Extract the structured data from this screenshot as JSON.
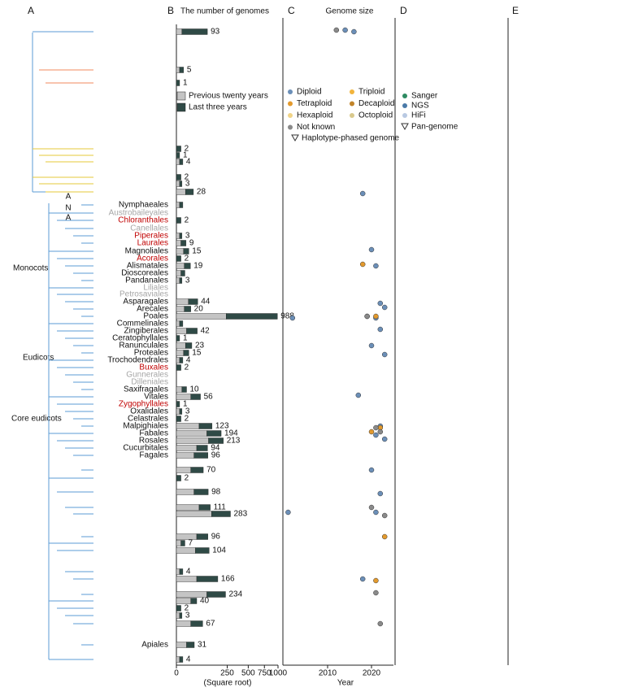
{
  "panels": [
    "A",
    "B",
    "C",
    "D",
    "E"
  ],
  "tree": {
    "clades": [
      "Monocots",
      "Eudicots",
      "Core eudicots"
    ],
    "ana": [
      "A",
      "N",
      "A"
    ]
  },
  "chart_data": [
    {
      "type": "bar",
      "orientation": "horizontal",
      "title": "The number of genomes",
      "xlabel": "(Square root)",
      "xscale": "sqrt",
      "xlim": [
        0,
        1000
      ],
      "xticks": [
        0,
        250,
        500,
        750,
        1000
      ],
      "categories": [
        null,
        null,
        null,
        null,
        null,
        null,
        null,
        null,
        null,
        "Nymphaeales",
        "Austrobaileyales",
        "Chloranthales",
        "Canellales",
        "Piperales",
        "Laurales",
        "Magnoliales",
        "Acorales",
        "Alismatales",
        "Dioscoreales",
        "Pandanales",
        "Liliales",
        "Petrosaviales",
        "Asparagales",
        "Arecales",
        "Poales",
        "Commelinales",
        "Zingiberales",
        "Ceratophyllales",
        "Ranunculales",
        "Proteales",
        "Trochodendrales",
        "Buxales",
        "Gunnerales",
        "Dilleniales",
        "Saxifragales",
        "Vitales",
        "Zygophyllales",
        "Oxalidales",
        "Celastrales",
        "Malpighiales",
        "Fabales",
        "Rosales",
        "Cucurbitales",
        "Fagales",
        null,
        null,
        null,
        null,
        null,
        null,
        null,
        null,
        null,
        null,
        null,
        null,
        null,
        null,
        null,
        "Apiales",
        null
      ],
      "category_colors": [
        null,
        null,
        null,
        null,
        null,
        null,
        null,
        null,
        null,
        "#111111",
        "#a6a6a6",
        "#c00000",
        "#a6a6a6",
        "#c00000",
        "#c00000",
        "#111111",
        "#c00000",
        "#111111",
        "#111111",
        "#111111",
        "#a6a6a6",
        "#a6a6a6",
        "#111111",
        "#111111",
        "#111111",
        "#111111",
        "#111111",
        "#111111",
        "#111111",
        "#111111",
        "#111111",
        "#c00000",
        "#a6a6a6",
        "#a6a6a6",
        "#111111",
        "#111111",
        "#c00000",
        "#111111",
        "#111111",
        "#111111",
        "#111111",
        "#111111",
        "#111111",
        "#111111",
        null,
        null,
        null,
        null,
        null,
        null,
        null,
        null,
        null,
        null,
        null,
        null,
        null,
        null,
        null,
        "#111111",
        null
      ],
      "series": [
        {
          "name": "Previous twenty years",
          "color": "#c4c4c4",
          "values": [
            3,
            1,
            0,
            0,
            0,
            1,
            0,
            1,
            8,
            1,
            null,
            0,
            null,
            1,
            2,
            5,
            0,
            6,
            2,
            1,
            null,
            null,
            14,
            6,
            240,
            1,
            10,
            0,
            8,
            5,
            1,
            0,
            null,
            null,
            3,
            20,
            0,
            1,
            0,
            50,
            90,
            100,
            40,
            30,
            20,
            0,
            30,
            50,
            120,
            40,
            2,
            35,
            1,
            40,
            90,
            20,
            0,
            1,
            20,
            10,
            1
          ]
        },
        {
          "name": "Last three years",
          "color": "#2f4a46",
          "values": [
            90,
            4,
            1,
            2,
            1,
            3,
            2,
            2,
            20,
            3,
            null,
            2,
            null,
            2,
            7,
            10,
            2,
            13,
            5,
            2,
            null,
            null,
            30,
            14,
            748,
            3,
            32,
            1,
            15,
            10,
            3,
            2,
            null,
            null,
            7,
            36,
            1,
            2,
            2,
            73,
            104,
            113,
            54,
            66,
            50,
            2,
            68,
            61,
            163,
            56,
            5,
            69,
            3,
            126,
            144,
            20,
            2,
            2,
            47,
            21,
            3
          ]
        }
      ],
      "totals": [
        93,
        5,
        1,
        2,
        1,
        4,
        2,
        3,
        28,
        null,
        null,
        2,
        null,
        3,
        9,
        15,
        2,
        19,
        null,
        3,
        null,
        null,
        44,
        20,
        988,
        null,
        42,
        1,
        23,
        15,
        4,
        2,
        null,
        null,
        10,
        56,
        1,
        3,
        2,
        123,
        194,
        213,
        94,
        96,
        70,
        2,
        98,
        111,
        283,
        96,
        7,
        104,
        4,
        166,
        234,
        40,
        2,
        3,
        67,
        31,
        4
      ]
    },
    {
      "type": "scatter",
      "title": "Genome size",
      "xlabel": "Year",
      "xlim": [
        2000,
        2025
      ],
      "xticks": [
        2010,
        2020
      ],
      "series": [
        {
          "name": "Diploid",
          "color": "#6b8fb8",
          "x": [
            2014,
            2016,
            2018,
            2020,
            2021,
            2022,
            2023,
            2019,
            2021,
            2022,
            2020,
            2023,
            2017,
            2022,
            2021,
            2023,
            2020,
            2022,
            2021,
            2018,
            2002,
            2001
          ],
          "rows": [
            0,
            0,
            8,
            15,
            17,
            22,
            23,
            24,
            24,
            26,
            28,
            29,
            35,
            39,
            40,
            41,
            44,
            46,
            48,
            53,
            24,
            48
          ]
        },
        {
          "name": "Triploid",
          "color": "#f2b43c",
          "x": [],
          "rows": []
        },
        {
          "name": "Tetraploid",
          "color": "#e39a2d",
          "x": [
            2018,
            2021,
            2022,
            2020,
            2023,
            2021
          ],
          "rows": [
            17,
            24,
            39,
            40,
            49,
            53
          ]
        },
        {
          "name": "Decaploid",
          "color": "#c1842a",
          "x": [],
          "rows": []
        },
        {
          "name": "Hexaploid",
          "color": "#f1d487",
          "x": [],
          "rows": []
        },
        {
          "name": "Octoploid",
          "color": "#d9c98d",
          "x": [],
          "rows": []
        },
        {
          "name": "Not known",
          "color": "#8a8a8a",
          "x": [
            2012,
            2019,
            2021,
            2022,
            2020,
            2023,
            2021,
            2022
          ],
          "rows": [
            0,
            24,
            39,
            40,
            47,
            48,
            54,
            58
          ]
        }
      ],
      "marker_legend": "Haplotype-phased genome"
    },
    {
      "type": "scatter",
      "series": [
        {
          "name": "Sanger",
          "color": "#2e8b62"
        },
        {
          "name": "NGS",
          "color": "#4a7aa8"
        },
        {
          "name": "HiFi",
          "color": "#b9c9e2"
        }
      ],
      "marker_legend": "Pan-genome"
    }
  ]
}
